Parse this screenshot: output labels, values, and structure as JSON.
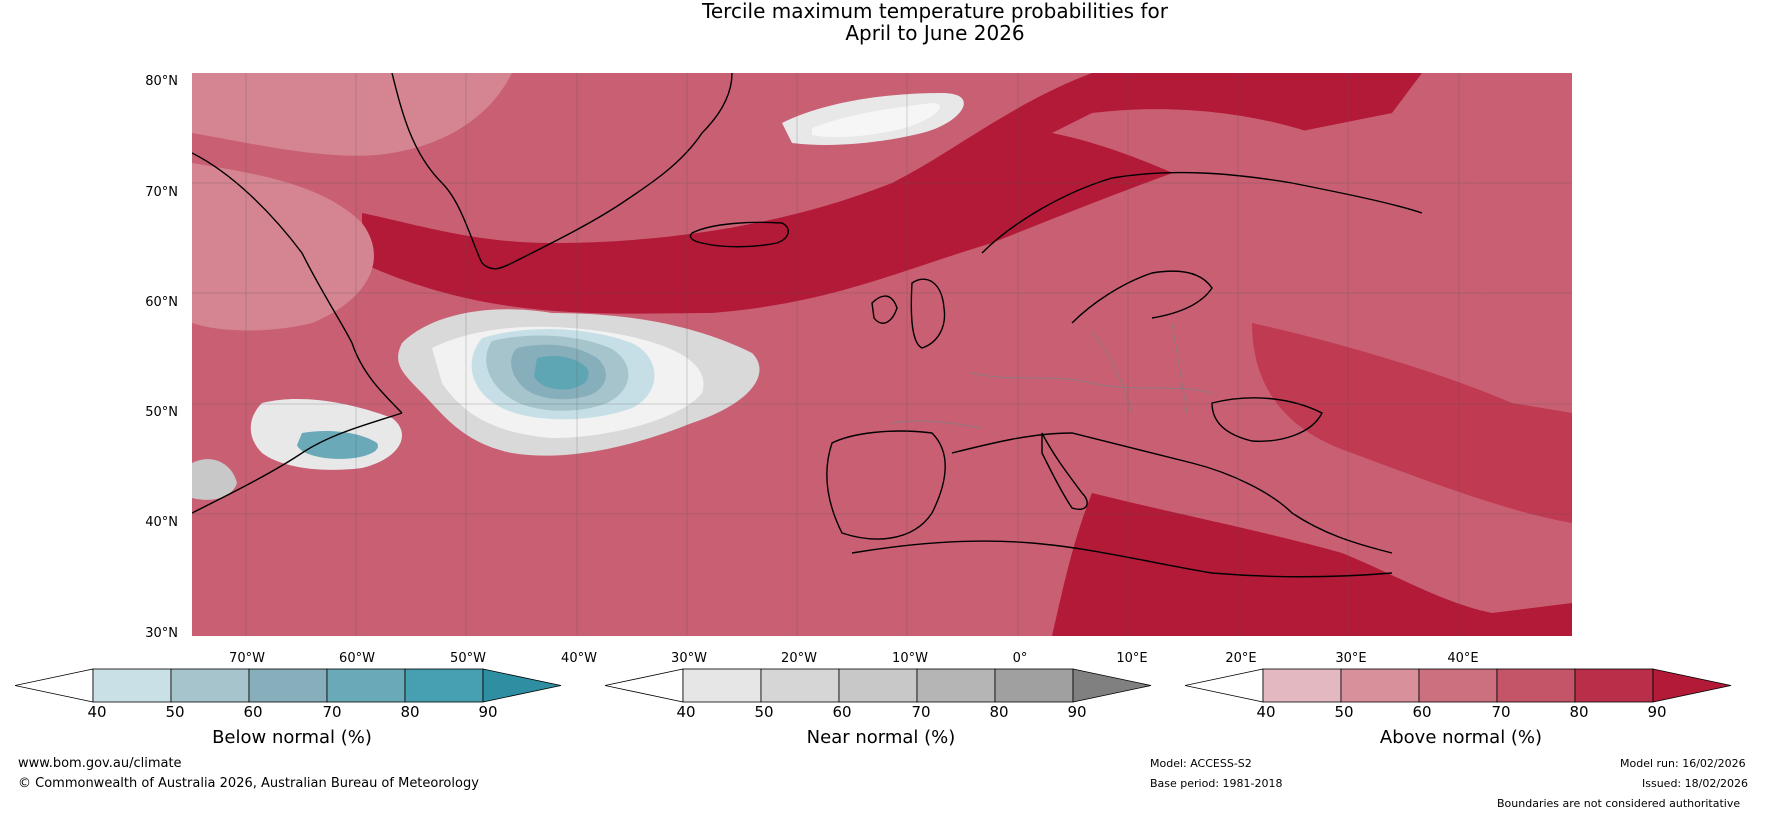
{
  "title": {
    "line1": "Tercile maximum temperature probabilities for",
    "line2": "April to June 2026"
  },
  "map": {
    "lat_labels": [
      "80°N",
      "70°N",
      "60°N",
      "50°N",
      "40°N",
      "30°N"
    ],
    "lon_labels": [
      "70°W",
      "60°W",
      "50°W",
      "40°W",
      "30°W",
      "20°W",
      "10°W",
      "0°",
      "10°E",
      "20°E",
      "30°E",
      "40°E"
    ],
    "colors": {
      "ocean_base": "#c95f73",
      "above_90": "#b21a37",
      "above_80": "#c03a52",
      "above_70": "#c95f73",
      "above_60": "#d48591",
      "above_50": "#e0b4bd",
      "near": "#d9d9d9",
      "near_white": "#f2f2f2",
      "below_50": "#c6dfe6",
      "below_60": "#a6c4cc",
      "below_70": "#86aebb",
      "below_80": "#5fa6b5",
      "below_90": "#2d8fa1"
    }
  },
  "colorbars": [
    {
      "title": "Below normal (%)",
      "ticks": [
        "40",
        "50",
        "60",
        "70",
        "80",
        "90"
      ],
      "colors": [
        "#ffffff",
        "#c9e0e7",
        "#a6c4cc",
        "#86aebb",
        "#6aa9b8",
        "#46a0b2",
        "#2d8fa1"
      ]
    },
    {
      "title": "Near normal (%)",
      "ticks": [
        "40",
        "50",
        "60",
        "70",
        "80",
        "90"
      ],
      "colors": [
        "#ffffff",
        "#e6e6e6",
        "#d6d6d6",
        "#c8c8c8",
        "#b5b5b5",
        "#a0a0a0",
        "#808080"
      ]
    },
    {
      "title": "Above normal (%)",
      "ticks": [
        "40",
        "50",
        "60",
        "70",
        "80",
        "90"
      ],
      "colors": [
        "#ffffff",
        "#e4b8c0",
        "#d8909b",
        "#cc707f",
        "#c45468",
        "#b92e48",
        "#b21a37"
      ]
    }
  ],
  "footer": {
    "website": "www.bom.gov.au/climate",
    "copyright": "© Commonwealth of Australia 2026, Australian Bureau of Meteorology",
    "model": "Model: ACCESS-S2",
    "base_period": "Base period: 1981-2018",
    "model_run": "Model run: 16/02/2026",
    "issued": "Issued: 18/02/2026",
    "disclaimer": "Boundaries are not considered authoritative"
  }
}
